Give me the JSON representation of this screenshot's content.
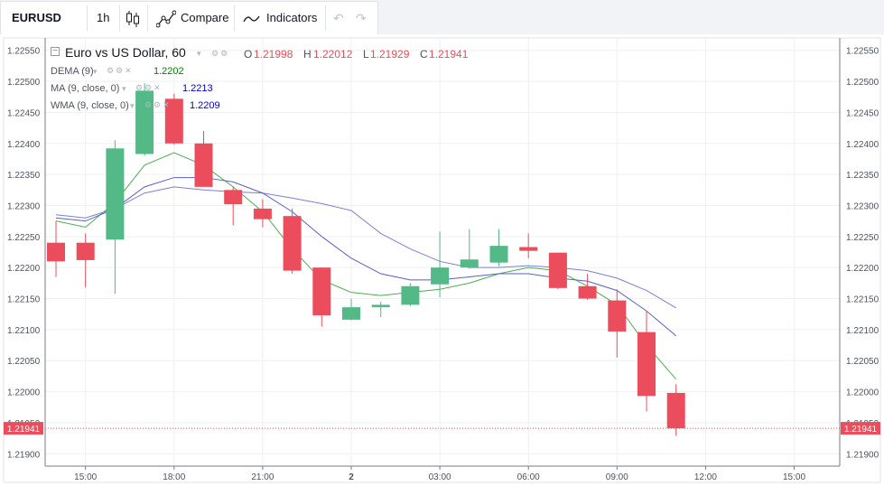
{
  "toolbar": {
    "symbol": "EURUSD",
    "interval": "1h",
    "compare_label": "Compare",
    "indicators_label": "Indicators"
  },
  "legend": {
    "title": "Euro vs US Dollar, 60",
    "o_label": "O",
    "o_value": "1.21998",
    "h_label": "H",
    "h_value": "1.22012",
    "l_label": "L",
    "l_value": "1.21929",
    "c_label": "C",
    "c_value": "1.21941",
    "dema_label": "DEMA (9)",
    "dema_value": "1.2202",
    "ma_label": "MA (9, close, 0)",
    "ma_value": "1.2213",
    "wma_label": "WMA (9, close, 0)",
    "wma_value": "1.2209"
  },
  "colors": {
    "up": "#53b987",
    "down": "#eb4d5c",
    "dema": "#4caf50",
    "ma": "#7b7fd6",
    "wma": "#5a5ec8",
    "dema_text": "#008000",
    "ma_text": "#0000cc",
    "wma_text": "#0000cc",
    "ohlc_text": "#eb4d5c"
  },
  "chart_data": {
    "type": "candlestick",
    "title": "Euro vs US Dollar, 60",
    "ylim": [
      1.2188,
      1.2257
    ],
    "x_ticks": [
      "15:00",
      "18:00",
      "21:00",
      "2",
      "03:00",
      "06:00",
      "09:00",
      "12:00",
      "15:00"
    ],
    "y_ticks": [
      "1.21900",
      "1.21950",
      "1.22000",
      "1.22050",
      "1.22100",
      "1.22150",
      "1.22200",
      "1.22250",
      "1.22300",
      "1.22350",
      "1.22400",
      "1.22450",
      "1.22500",
      "1.22550"
    ],
    "last_price_label": "1.21941",
    "last_price": 1.21941,
    "candles": [
      {
        "o": 1.2224,
        "h": 1.22275,
        "l": 1.22185,
        "c": 1.2221
      },
      {
        "o": 1.2224,
        "h": 1.22255,
        "l": 1.22168,
        "c": 1.22212
      },
      {
        "o": 1.22245,
        "h": 1.22405,
        "l": 1.22158,
        "c": 1.22392
      },
      {
        "o": 1.22383,
        "h": 1.22497,
        "l": 1.2238,
        "c": 1.22485
      },
      {
        "o": 1.22472,
        "h": 1.2248,
        "l": 1.22398,
        "c": 1.224
      },
      {
        "o": 1.224,
        "h": 1.2242,
        "l": 1.2233,
        "c": 1.2233
      },
      {
        "o": 1.22325,
        "h": 1.2233,
        "l": 1.22268,
        "c": 1.22302
      },
      {
        "o": 1.22295,
        "h": 1.2231,
        "l": 1.22265,
        "c": 1.22278
      },
      {
        "o": 1.22283,
        "h": 1.22295,
        "l": 1.2219,
        "c": 1.22195
      },
      {
        "o": 1.222,
        "h": 1.222,
        "l": 1.22105,
        "c": 1.22123
      },
      {
        "o": 1.22116,
        "h": 1.2215,
        "l": 1.22115,
        "c": 1.22136
      },
      {
        "o": 1.22136,
        "h": 1.22145,
        "l": 1.2212,
        "c": 1.2214
      },
      {
        "o": 1.2214,
        "h": 1.22175,
        "l": 1.22138,
        "c": 1.2217
      },
      {
        "o": 1.22173,
        "h": 1.22258,
        "l": 1.22152,
        "c": 1.222
      },
      {
        "o": 1.222,
        "h": 1.22262,
        "l": 1.22198,
        "c": 1.22213
      },
      {
        "o": 1.22208,
        "h": 1.22262,
        "l": 1.22202,
        "c": 1.22235
      },
      {
        "o": 1.22233,
        "h": 1.22255,
        "l": 1.22215,
        "c": 1.22227
      },
      {
        "o": 1.22224,
        "h": 1.22224,
        "l": 1.22165,
        "c": 1.22167
      },
      {
        "o": 1.2217,
        "h": 1.2219,
        "l": 1.22148,
        "c": 1.2215
      },
      {
        "o": 1.22147,
        "h": 1.22165,
        "l": 1.22055,
        "c": 1.22097
      },
      {
        "o": 1.22096,
        "h": 1.2213,
        "l": 1.21968,
        "c": 1.21993
      },
      {
        "o": 1.21998,
        "h": 1.22012,
        "l": 1.21929,
        "c": 1.21941
      }
    ],
    "series": [
      {
        "name": "DEMA (9)",
        "values": [
          1.22275,
          1.22265,
          1.22305,
          1.22365,
          1.22385,
          1.22365,
          1.2233,
          1.2229,
          1.2223,
          1.2218,
          1.2216,
          1.22155,
          1.2216,
          1.22165,
          1.22175,
          1.2219,
          1.222,
          1.22195,
          1.2217,
          1.2214,
          1.22075,
          1.2202
        ]
      },
      {
        "name": "MA (9, close, 0)",
        "values": [
          1.22285,
          1.2228,
          1.22295,
          1.2232,
          1.2233,
          1.22325,
          1.22322,
          1.2232,
          1.22312,
          1.22303,
          1.22292,
          1.22255,
          1.2223,
          1.2221,
          1.222,
          1.222,
          1.22203,
          1.222,
          1.22195,
          1.22183,
          1.22163,
          1.22135
        ]
      },
      {
        "name": "WMA (9, close, 0)",
        "values": [
          1.2228,
          1.22275,
          1.22295,
          1.2233,
          1.22345,
          1.22345,
          1.22338,
          1.2232,
          1.2229,
          1.2225,
          1.22215,
          1.2219,
          1.2218,
          1.2218,
          1.22185,
          1.2219,
          1.2219,
          1.22183,
          1.22178,
          1.22163,
          1.2213,
          1.2209
        ]
      }
    ]
  }
}
